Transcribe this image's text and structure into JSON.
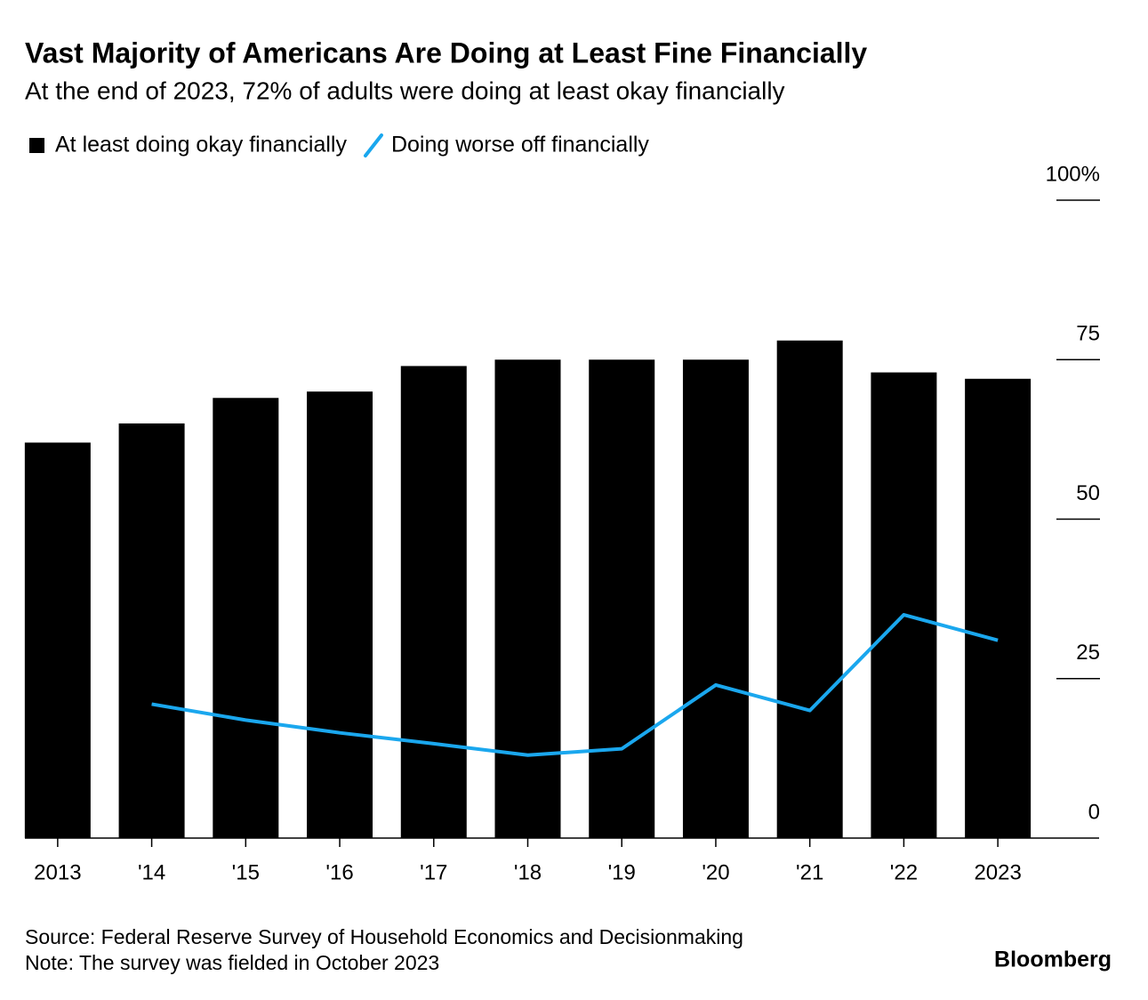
{
  "chart_data": {
    "type": "bar",
    "title": "Vast Majority of Americans Are Doing at Least Fine Financially",
    "subtitle": "At the end of 2023, 72% of adults were doing at least okay financially",
    "categories": [
      "2013",
      "'14",
      "'15",
      "'16",
      "'17",
      "'18",
      "'19",
      "'20",
      "'21",
      "'22",
      "2023"
    ],
    "series": [
      {
        "name": "At least doing okay financially",
        "type": "bar",
        "color": "#000000",
        "values": [
          62,
          65,
          69,
          70,
          74,
          75,
          75,
          75,
          78,
          73,
          72
        ]
      },
      {
        "name": "Doing worse off financially",
        "type": "line",
        "color": "#1aa7ee",
        "values": [
          null,
          21,
          18.5,
          16.5,
          14.8,
          13,
          14,
          24,
          20,
          35,
          31
        ]
      }
    ],
    "ylim": [
      0,
      100
    ],
    "yticks": [
      0,
      25,
      50,
      75,
      {
        "value": 100,
        "label": "100%"
      }
    ],
    "source": "Source: Federal Reserve Survey of Household Economics and Decisionmaking",
    "note": "Note: The survey was fielded in October 2023",
    "logo": "Bloomberg"
  }
}
